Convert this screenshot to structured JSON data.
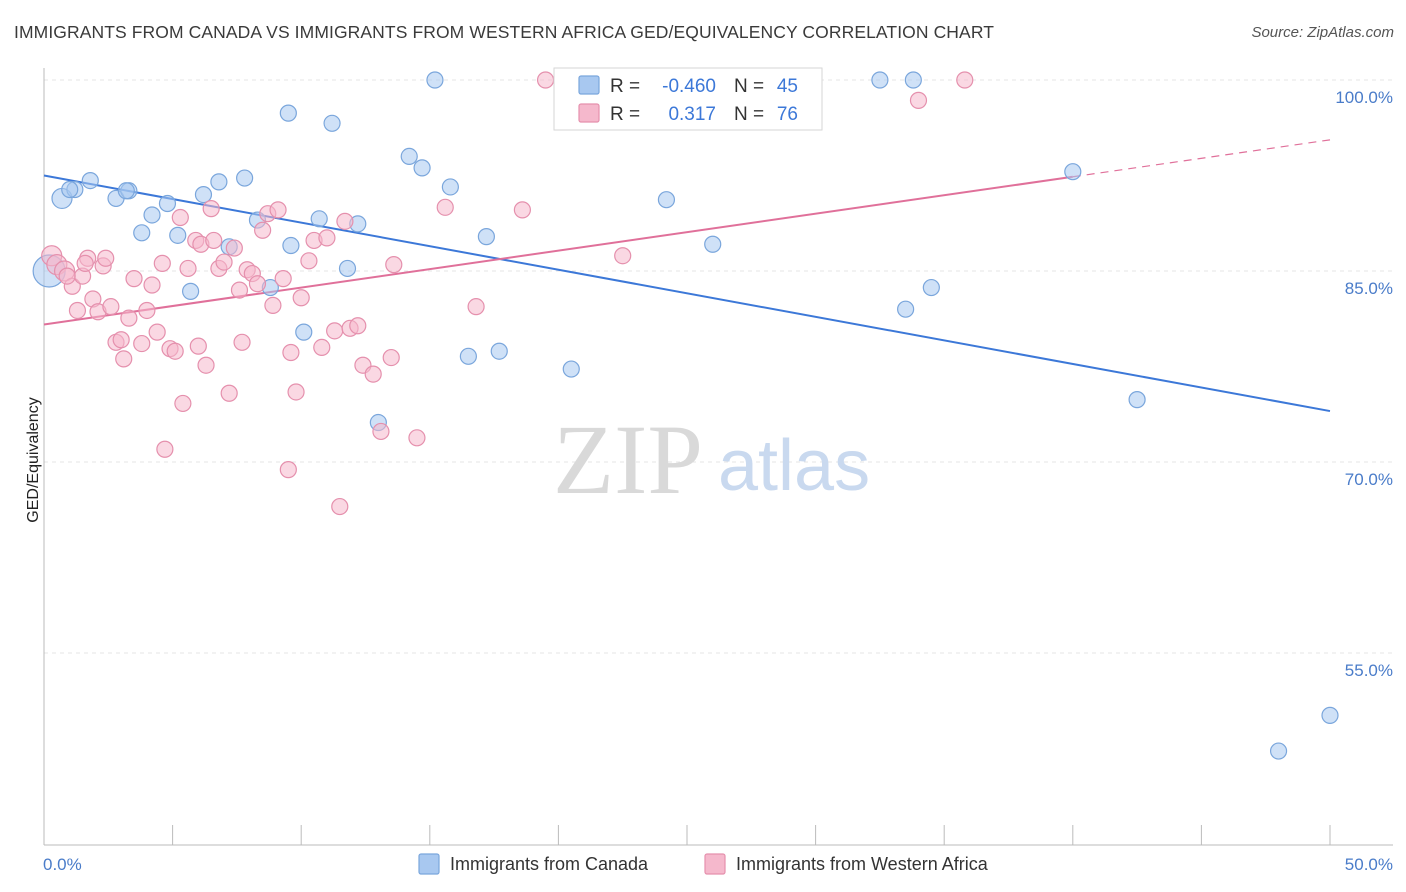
{
  "header": {
    "title": "IMMIGRANTS FROM CANADA VS IMMIGRANTS FROM WESTERN AFRICA GED/EQUIVALENCY CORRELATION CHART",
    "source": "Source: ZipAtlas.com"
  },
  "watermark": {
    "zip": "ZIP",
    "atlas": "atlas"
  },
  "stats_box": {
    "rows": [
      {
        "r_label": "R =",
        "r_value": "-0.460",
        "n_label": "N =",
        "n_value": "45",
        "color": "#a8c8f0"
      },
      {
        "r_label": "R =",
        "r_value": "0.317",
        "n_label": "N =",
        "n_value": "76",
        "color": "#f5b8cc"
      }
    ]
  },
  "chart_data": {
    "type": "scatter",
    "title": "IMMIGRANTS FROM CANADA VS IMMIGRANTS FROM WESTERN AFRICA GED/EQUIVALENCY CORRELATION CHART",
    "xlabel": "",
    "ylabel": "GED/Equivalency",
    "xlim": [
      0,
      50
    ],
    "ylim": [
      43,
      101
    ],
    "x_tick_labels": [
      "0.0%",
      "50.0%"
    ],
    "y_ticks": [
      55,
      70,
      85,
      100
    ],
    "y_tick_labels": [
      "55.0%",
      "70.0%",
      "85.0%",
      "100.0%"
    ],
    "grid": true,
    "legend_position": "bottom-center",
    "series": [
      {
        "name": "Immigrants from Canada",
        "color": "#a8c8f0",
        "stroke": "#7aa6dc",
        "trend_color": "#3c78d8",
        "trend": {
          "x": [
            0,
            50
          ],
          "y": [
            92.5,
            74.0
          ]
        },
        "points": [
          [
            0.2,
            85.0,
            16
          ],
          [
            0.7,
            90.7,
            10
          ],
          [
            1.2,
            91.4,
            8
          ],
          [
            1.8,
            92.1,
            8
          ],
          [
            2.8,
            90.7,
            8
          ],
          [
            3.3,
            91.3,
            8
          ],
          [
            3.8,
            88.0,
            8
          ],
          [
            4.2,
            89.4,
            8
          ],
          [
            4.8,
            90.3,
            8
          ],
          [
            5.2,
            87.8,
            8
          ],
          [
            5.7,
            83.4,
            8
          ],
          [
            6.2,
            91.0,
            8
          ],
          [
            6.8,
            92.0,
            8
          ],
          [
            7.2,
            86.9,
            8
          ],
          [
            7.8,
            92.3,
            8
          ],
          [
            8.3,
            89.0,
            8
          ],
          [
            8.8,
            83.7,
            8
          ],
          [
            9.5,
            97.4,
            8
          ],
          [
            9.6,
            87.0,
            8
          ],
          [
            10.1,
            80.2,
            8
          ],
          [
            10.7,
            89.1,
            8
          ],
          [
            11.2,
            96.6,
            8
          ],
          [
            11.8,
            85.2,
            8
          ],
          [
            12.2,
            88.7,
            8
          ],
          [
            13.0,
            73.1,
            8
          ],
          [
            14.2,
            94.0,
            8
          ],
          [
            14.7,
            93.1,
            8
          ],
          [
            15.2,
            100.0,
            8
          ],
          [
            15.8,
            91.6,
            8
          ],
          [
            16.5,
            78.3,
            8
          ],
          [
            17.2,
            87.7,
            8
          ],
          [
            17.7,
            78.7,
            8
          ],
          [
            20.5,
            77.3,
            8
          ],
          [
            24.2,
            90.6,
            8
          ],
          [
            26.0,
            87.1,
            8
          ],
          [
            32.5,
            100.0,
            8
          ],
          [
            33.8,
            100.0,
            8
          ],
          [
            33.5,
            82.0,
            8
          ],
          [
            34.5,
            83.7,
            8
          ],
          [
            40.0,
            92.8,
            8
          ],
          [
            42.5,
            74.9,
            8
          ],
          [
            48.0,
            47.3,
            8
          ],
          [
            50.0,
            50.1,
            8
          ],
          [
            1.0,
            91.4,
            8
          ],
          [
            3.2,
            91.3,
            8
          ]
        ]
      },
      {
        "name": "Immigrants from Western Africa",
        "color": "#f5b8cc",
        "stroke": "#e590ad",
        "trend_color": "#e0709a",
        "trend": {
          "x": [
            0,
            40
          ],
          "y": [
            80.8,
            92.4
          ]
        },
        "trend_dashed": {
          "x": [
            40,
            50
          ],
          "y": [
            92.4,
            95.3
          ]
        },
        "points": [
          [
            0.3,
            86.2,
            10
          ],
          [
            0.5,
            85.5,
            10
          ],
          [
            0.8,
            85.0,
            10
          ],
          [
            1.1,
            83.8,
            8
          ],
          [
            1.3,
            81.9,
            8
          ],
          [
            1.5,
            84.6,
            8
          ],
          [
            1.7,
            86.0,
            8
          ],
          [
            1.9,
            82.8,
            8
          ],
          [
            2.1,
            81.8,
            8
          ],
          [
            2.3,
            85.4,
            8
          ],
          [
            2.6,
            82.2,
            8
          ],
          [
            2.8,
            79.4,
            8
          ],
          [
            3.0,
            79.6,
            8
          ],
          [
            3.1,
            78.1,
            8
          ],
          [
            3.3,
            81.3,
            8
          ],
          [
            3.5,
            84.4,
            8
          ],
          [
            3.8,
            79.3,
            8
          ],
          [
            4.0,
            81.9,
            8
          ],
          [
            4.2,
            83.9,
            8
          ],
          [
            4.4,
            80.2,
            8
          ],
          [
            4.6,
            85.6,
            8
          ],
          [
            4.9,
            78.9,
            8
          ],
          [
            5.1,
            78.7,
            8
          ],
          [
            5.3,
            89.2,
            8
          ],
          [
            5.4,
            74.6,
            8
          ],
          [
            5.6,
            85.2,
            8
          ],
          [
            5.9,
            87.4,
            8
          ],
          [
            6.1,
            87.1,
            8
          ],
          [
            6.3,
            77.6,
            8
          ],
          [
            6.5,
            89.9,
            8
          ],
          [
            6.6,
            87.4,
            8
          ],
          [
            6.8,
            85.2,
            8
          ],
          [
            7.0,
            85.7,
            8
          ],
          [
            7.2,
            75.4,
            8
          ],
          [
            7.4,
            86.8,
            8
          ],
          [
            7.6,
            83.5,
            8
          ],
          [
            7.7,
            79.4,
            8
          ],
          [
            7.9,
            85.1,
            8
          ],
          [
            8.1,
            84.8,
            8
          ],
          [
            8.3,
            84.0,
            8
          ],
          [
            8.5,
            88.2,
            8
          ],
          [
            8.7,
            89.5,
            8
          ],
          [
            8.9,
            82.3,
            8
          ],
          [
            9.1,
            89.8,
            8
          ],
          [
            9.3,
            84.4,
            8
          ],
          [
            9.5,
            69.4,
            8
          ],
          [
            9.6,
            78.6,
            8
          ],
          [
            9.8,
            75.5,
            8
          ],
          [
            10.0,
            82.9,
            8
          ],
          [
            10.3,
            85.8,
            8
          ],
          [
            10.5,
            87.4,
            8
          ],
          [
            10.8,
            79.0,
            8
          ],
          [
            11.0,
            87.6,
            8
          ],
          [
            11.3,
            80.3,
            8
          ],
          [
            11.5,
            66.5,
            8
          ],
          [
            11.7,
            88.9,
            8
          ],
          [
            11.9,
            80.5,
            8
          ],
          [
            12.2,
            80.7,
            8
          ],
          [
            12.4,
            77.6,
            8
          ],
          [
            12.8,
            76.9,
            8
          ],
          [
            13.1,
            72.4,
            8
          ],
          [
            13.5,
            78.2,
            8
          ],
          [
            13.6,
            85.5,
            8
          ],
          [
            14.5,
            71.9,
            8
          ],
          [
            15.6,
            90.0,
            8
          ],
          [
            16.8,
            82.2,
            8
          ],
          [
            18.6,
            89.8,
            8
          ],
          [
            19.5,
            100.0,
            8
          ],
          [
            22.5,
            86.2,
            8
          ],
          [
            34.0,
            98.4,
            8
          ],
          [
            35.8,
            100.0,
            8
          ],
          [
            4.7,
            71.0,
            8
          ],
          [
            6.0,
            79.1,
            8
          ],
          [
            2.4,
            86.0,
            8
          ],
          [
            1.6,
            85.6,
            8
          ],
          [
            0.9,
            84.6,
            8
          ]
        ]
      }
    ]
  }
}
